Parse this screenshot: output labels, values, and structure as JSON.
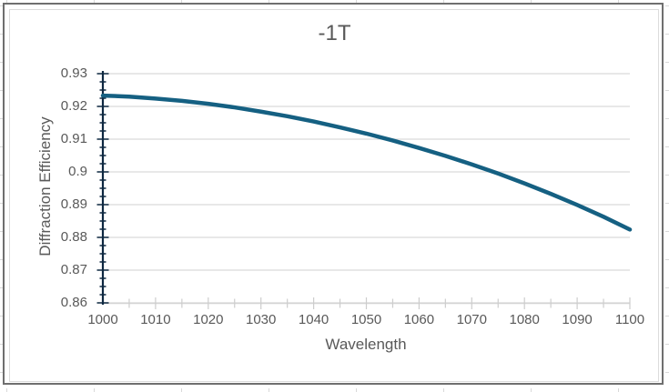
{
  "chart_data": {
    "type": "line",
    "title": "-1T",
    "xlabel": "Wavelength",
    "ylabel": "Diffraction Efficiency",
    "xlim": [
      1000,
      1100
    ],
    "ylim": [
      0.86,
      0.93
    ],
    "x_minor_unit": 5,
    "y_minor_unit": 0.0025,
    "grid": "horizontal-major",
    "legend": "none",
    "x_tick_labels": [
      "1000",
      "1010",
      "1020",
      "1030",
      "1040",
      "1050",
      "1060",
      "1070",
      "1080",
      "1090",
      "1100"
    ],
    "x_tick_values": [
      1000,
      1010,
      1020,
      1030,
      1040,
      1050,
      1060,
      1070,
      1080,
      1090,
      1100
    ],
    "y_tick_labels": [
      "0.93",
      "0.92",
      "0.91",
      "0.9",
      "0.89",
      "0.88",
      "0.87",
      "0.86"
    ],
    "y_tick_values": [
      0.93,
      0.92,
      0.91,
      0.9,
      0.89,
      0.88,
      0.87,
      0.86
    ],
    "x": [
      1000,
      1005,
      1010,
      1015,
      1020,
      1025,
      1030,
      1035,
      1040,
      1045,
      1050,
      1055,
      1060,
      1065,
      1070,
      1075,
      1080,
      1085,
      1090,
      1095,
      1100
    ],
    "series": [
      {
        "name": "-1T",
        "values": [
          0.9233,
          0.923,
          0.9224,
          0.9217,
          0.9208,
          0.9197,
          0.9184,
          0.917,
          0.9154,
          0.9136,
          0.9117,
          0.9096,
          0.9073,
          0.9049,
          0.9023,
          0.8995,
          0.8965,
          0.8933,
          0.8899,
          0.8863,
          0.8824
        ]
      }
    ],
    "colors": {
      "series_line": "#156082",
      "y_axis": "#0e2841",
      "x_axis": "#d4d4d4",
      "x_tick": "#cdcdcd",
      "gridline": "#d9d9d9",
      "text": "#595959",
      "chart_border": "#6f6f6f",
      "inner_border": "#dcdcdc"
    }
  }
}
